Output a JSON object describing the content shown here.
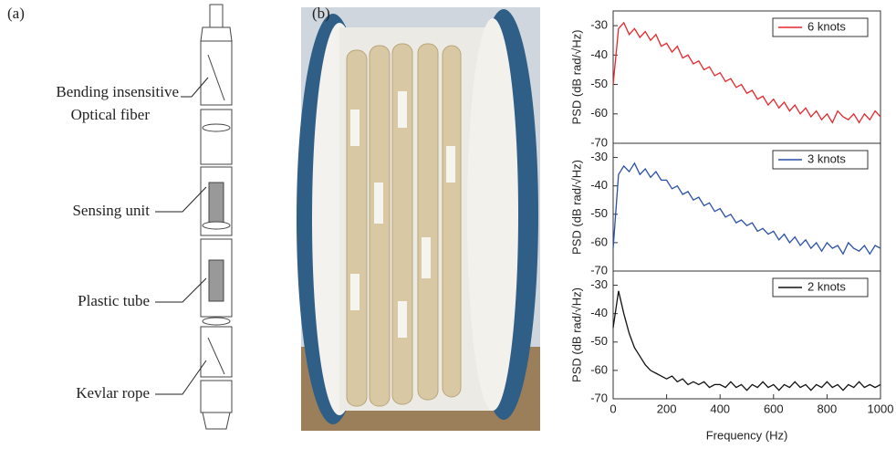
{
  "figure": {
    "panel_labels": [
      "(a)",
      "(b)"
    ],
    "diagram_labels": [
      "Bending insensitive",
      "Optical fiber",
      "Sensing unit",
      "Plastic tube",
      "Kevlar rope"
    ]
  },
  "chart_data": [
    {
      "type": "line",
      "ylabel": "PSD (dB rad/√Hz)",
      "xlim": [
        0,
        1000
      ],
      "ylim": [
        -70,
        -25
      ],
      "yticks": [
        -70,
        -60,
        -50,
        -40,
        -30
      ],
      "legend": "upper right",
      "x": [
        0,
        20,
        40,
        60,
        80,
        100,
        120,
        140,
        160,
        180,
        200,
        220,
        240,
        260,
        280,
        300,
        320,
        340,
        360,
        380,
        400,
        420,
        440,
        460,
        480,
        500,
        520,
        540,
        560,
        580,
        600,
        620,
        640,
        660,
        680,
        700,
        720,
        740,
        760,
        780,
        800,
        820,
        840,
        860,
        880,
        900,
        920,
        940,
        960,
        980,
        1000
      ],
      "series": [
        {
          "name": "6 knots",
          "color": "#e8262b",
          "values": [
            -50,
            -31,
            -29,
            -33,
            -31,
            -34,
            -32,
            -35,
            -33,
            -37,
            -36,
            -39,
            -37,
            -41,
            -40,
            -43,
            -42,
            -45,
            -44,
            -47,
            -46,
            -49,
            -48,
            -51,
            -50,
            -53,
            -52,
            -55,
            -54,
            -57,
            -55,
            -58,
            -56,
            -59,
            -57,
            -60,
            -58,
            -61,
            -59,
            -62,
            -60,
            -63,
            -59,
            -61,
            -62,
            -60,
            -63,
            -60,
            -62,
            -59,
            -61
          ]
        }
      ]
    },
    {
      "type": "line",
      "ylabel": "PSD (dB rad/√Hz)",
      "xlim": [
        0,
        1000
      ],
      "ylim": [
        -70,
        -25
      ],
      "yticks": [
        -70,
        -60,
        -50,
        -40,
        -30
      ],
      "legend": "upper right",
      "x": [
        0,
        20,
        40,
        60,
        80,
        100,
        120,
        140,
        160,
        180,
        200,
        220,
        240,
        260,
        280,
        300,
        320,
        340,
        360,
        380,
        400,
        420,
        440,
        460,
        480,
        500,
        520,
        540,
        560,
        580,
        600,
        620,
        640,
        660,
        680,
        700,
        720,
        740,
        760,
        780,
        800,
        820,
        840,
        860,
        880,
        900,
        920,
        940,
        960,
        980,
        1000
      ],
      "series": [
        {
          "name": "3 knots",
          "color": "#2a4fa6",
          "values": [
            -62,
            -36,
            -33,
            -35,
            -32,
            -36,
            -34,
            -37,
            -35,
            -38,
            -38,
            -41,
            -40,
            -43,
            -42,
            -45,
            -44,
            -47,
            -46,
            -49,
            -48,
            -51,
            -50,
            -53,
            -52,
            -54,
            -53,
            -56,
            -55,
            -57,
            -56,
            -59,
            -57,
            -60,
            -58,
            -61,
            -59,
            -62,
            -60,
            -63,
            -60,
            -62,
            -61,
            -64,
            -60,
            -62,
            -63,
            -61,
            -64,
            -61,
            -62
          ]
        }
      ]
    },
    {
      "type": "line",
      "ylabel": "PSD (dB rad/√Hz)",
      "xlabel": "Frequency (Hz)",
      "xlim": [
        0,
        1000
      ],
      "xticks": [
        0,
        200,
        400,
        600,
        800,
        1000
      ],
      "ylim": [
        -70,
        -25
      ],
      "yticks": [
        -70,
        -60,
        -50,
        -40,
        -30
      ],
      "legend": "upper right",
      "x": [
        0,
        20,
        40,
        60,
        80,
        100,
        120,
        140,
        160,
        180,
        200,
        220,
        240,
        260,
        280,
        300,
        320,
        340,
        360,
        380,
        400,
        420,
        440,
        460,
        480,
        500,
        520,
        540,
        560,
        580,
        600,
        620,
        640,
        660,
        680,
        700,
        720,
        740,
        760,
        780,
        800,
        820,
        840,
        860,
        880,
        900,
        920,
        940,
        960,
        980,
        1000
      ],
      "series": [
        {
          "name": "2 knots",
          "color": "#111111",
          "values": [
            -45,
            -32,
            -40,
            -47,
            -52,
            -55,
            -58,
            -60,
            -61,
            -62,
            -63,
            -62,
            -64,
            -63,
            -65,
            -64,
            -65,
            -64,
            -66,
            -65,
            -65,
            -66,
            -64,
            -66,
            -65,
            -67,
            -65,
            -66,
            -64,
            -66,
            -65,
            -67,
            -65,
            -66,
            -64,
            -66,
            -65,
            -67,
            -65,
            -66,
            -64,
            -66,
            -65,
            -67,
            -65,
            -66,
            -64,
            -66,
            -65,
            -66,
            -65
          ]
        }
      ]
    }
  ]
}
